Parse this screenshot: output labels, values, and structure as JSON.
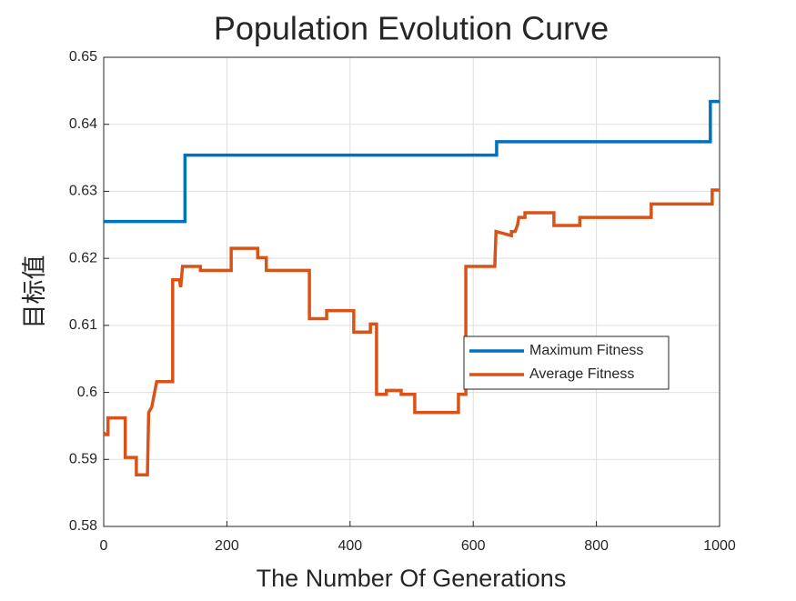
{
  "chart_data": {
    "type": "line",
    "title": "Population Evolution Curve",
    "xlabel": "The Number Of Generations",
    "ylabel": "目标值",
    "xlim": [
      0,
      1000
    ],
    "xticks": [
      0,
      200,
      400,
      600,
      800,
      1000
    ],
    "ylim": [
      0.58,
      0.65
    ],
    "yticks": [
      0.58,
      0.59,
      0.6,
      0.61,
      0.62,
      0.63,
      0.64,
      0.65
    ],
    "grid": true,
    "legend": "east",
    "series": [
      {
        "name": "Maximum Fitness",
        "color": "#0072BD",
        "x": [
          0,
          132,
          132,
          638,
          638,
          985,
          985,
          1000
        ],
        "values": [
          0.6255,
          0.6255,
          0.6354,
          0.6354,
          0.6374,
          0.6374,
          0.6434,
          0.6434
        ]
      },
      {
        "name": "Average Fitness",
        "color": "#D95319",
        "x": [
          0,
          3,
          7,
          7,
          35,
          35,
          53,
          53,
          71,
          73,
          78,
          86,
          112,
          112,
          123,
          125,
          128,
          157,
          157,
          207,
          207,
          250,
          250,
          264,
          264,
          334,
          334,
          362,
          362,
          406,
          406,
          433,
          433,
          443,
          443,
          459,
          459,
          483,
          483,
          505,
          505,
          576,
          576,
          588,
          588,
          635,
          637,
          662,
          662,
          668,
          672,
          674,
          684,
          684,
          731,
          731,
          773,
          773,
          889,
          889,
          988,
          988,
          1000
        ],
        "values": [
          0.594,
          0.5937,
          0.5937,
          0.5962,
          0.5962,
          0.5903,
          0.5903,
          0.5877,
          0.5877,
          0.597,
          0.5978,
          0.6016,
          0.6016,
          0.6168,
          0.6168,
          0.6157,
          0.6188,
          0.6188,
          0.6182,
          0.6182,
          0.6215,
          0.6215,
          0.6201,
          0.6201,
          0.6182,
          0.6182,
          0.611,
          0.611,
          0.6122,
          0.6122,
          0.609,
          0.609,
          0.6102,
          0.6102,
          0.5997,
          0.5997,
          0.6003,
          0.6003,
          0.5997,
          0.5997,
          0.597,
          0.597,
          0.5997,
          0.5997,
          0.6188,
          0.6188,
          0.624,
          0.6234,
          0.624,
          0.624,
          0.625,
          0.6261,
          0.6261,
          0.6268,
          0.6268,
          0.6249,
          0.6249,
          0.6261,
          0.6261,
          0.6281,
          0.6281,
          0.6302,
          0.6302
        ]
      }
    ]
  }
}
